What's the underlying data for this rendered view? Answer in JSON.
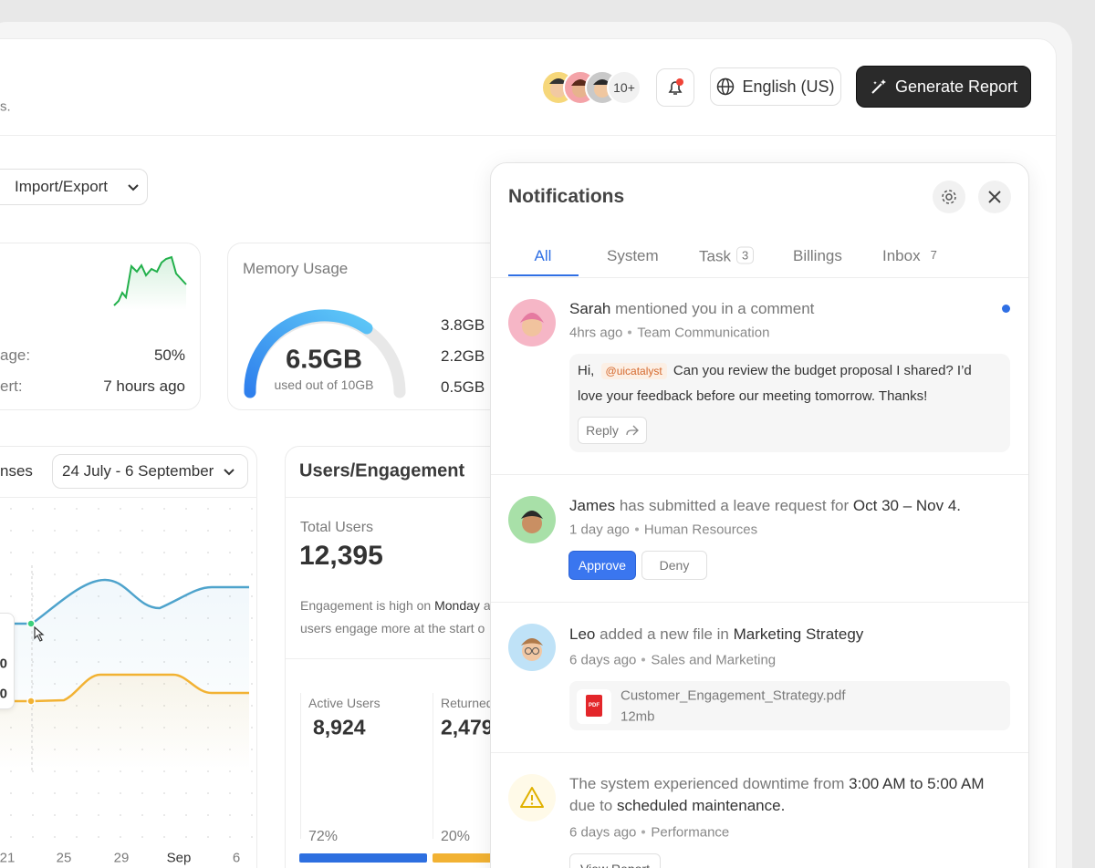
{
  "header": {
    "subtitle": "s.",
    "avatar_count": "10+",
    "language": "English (US)",
    "generate_button": "Generate Report"
  },
  "toolbar": {
    "import_export": "Import/Export"
  },
  "stats_card": {
    "rows": [
      {
        "label": "age:",
        "value": "50%"
      },
      {
        "label": "ert:",
        "value": "7 hours ago"
      }
    ]
  },
  "memory_card": {
    "title": "Memory Usage",
    "value": "6.5GB",
    "caption": "used out of 10GB",
    "legend": [
      "3.8GB",
      "2.2GB",
      "0.5GB"
    ]
  },
  "chart_card": {
    "title": "nses",
    "date_range": "24 July - 6 September",
    "x_labels": [
      "21",
      "25",
      "29",
      "Sep",
      "6"
    ],
    "tooltip": [
      "0",
      "0"
    ]
  },
  "engagement_card": {
    "title": "Users/Engagement",
    "total_label": "Total Users",
    "total_value": "12,395",
    "note": [
      "Engagement is high on",
      "Monday",
      "a",
      "users engage more at the start o"
    ],
    "metrics": [
      {
        "label": "Active Users",
        "value": "8,924",
        "percent": "72%"
      },
      {
        "label": "Returned",
        "value": "2,479",
        "percent": "20%"
      }
    ]
  },
  "notifications": {
    "title": "Notifications",
    "tabs": [
      {
        "label": "All"
      },
      {
        "label": "System"
      },
      {
        "label": "Task",
        "count": "3"
      },
      {
        "label": "Billings"
      },
      {
        "label": "Inbox",
        "count": "7"
      }
    ],
    "items": [
      {
        "name": "Sarah",
        "text": "mentioned you in a comment",
        "time": "4hrs ago",
        "source": "Team Communication",
        "comment": {
          "greeting": "Hi,",
          "mention": "@uicatalyst",
          "body": "Can you review the budget proposal I shared? I’d love your feedback before our meeting tomorrow. Thanks!"
        },
        "button": "Reply"
      },
      {
        "name": "James",
        "text": "has submitted a leave request for",
        "highlight": "Oct 30 – Nov 4.",
        "time": "1 day ago",
        "source": "Human Resources",
        "buttons": [
          "Approve",
          "Deny"
        ]
      },
      {
        "name": "Leo",
        "text": "added a new file in",
        "highlight": "Marketing Strategy",
        "time": "6 days ago",
        "source": "Sales and Marketing",
        "file": {
          "icon": "PDF",
          "name": "Customer_Engagement_Strategy.pdf",
          "size": "12mb"
        }
      },
      {
        "text": "The system experienced downtime from",
        "highlight": "3:00 AM to 5:00 AM",
        "text2": "due to",
        "highlight2": "scheduled maintenance.",
        "time": "6 days ago",
        "source": "Performance",
        "button": "View Report"
      }
    ]
  }
}
